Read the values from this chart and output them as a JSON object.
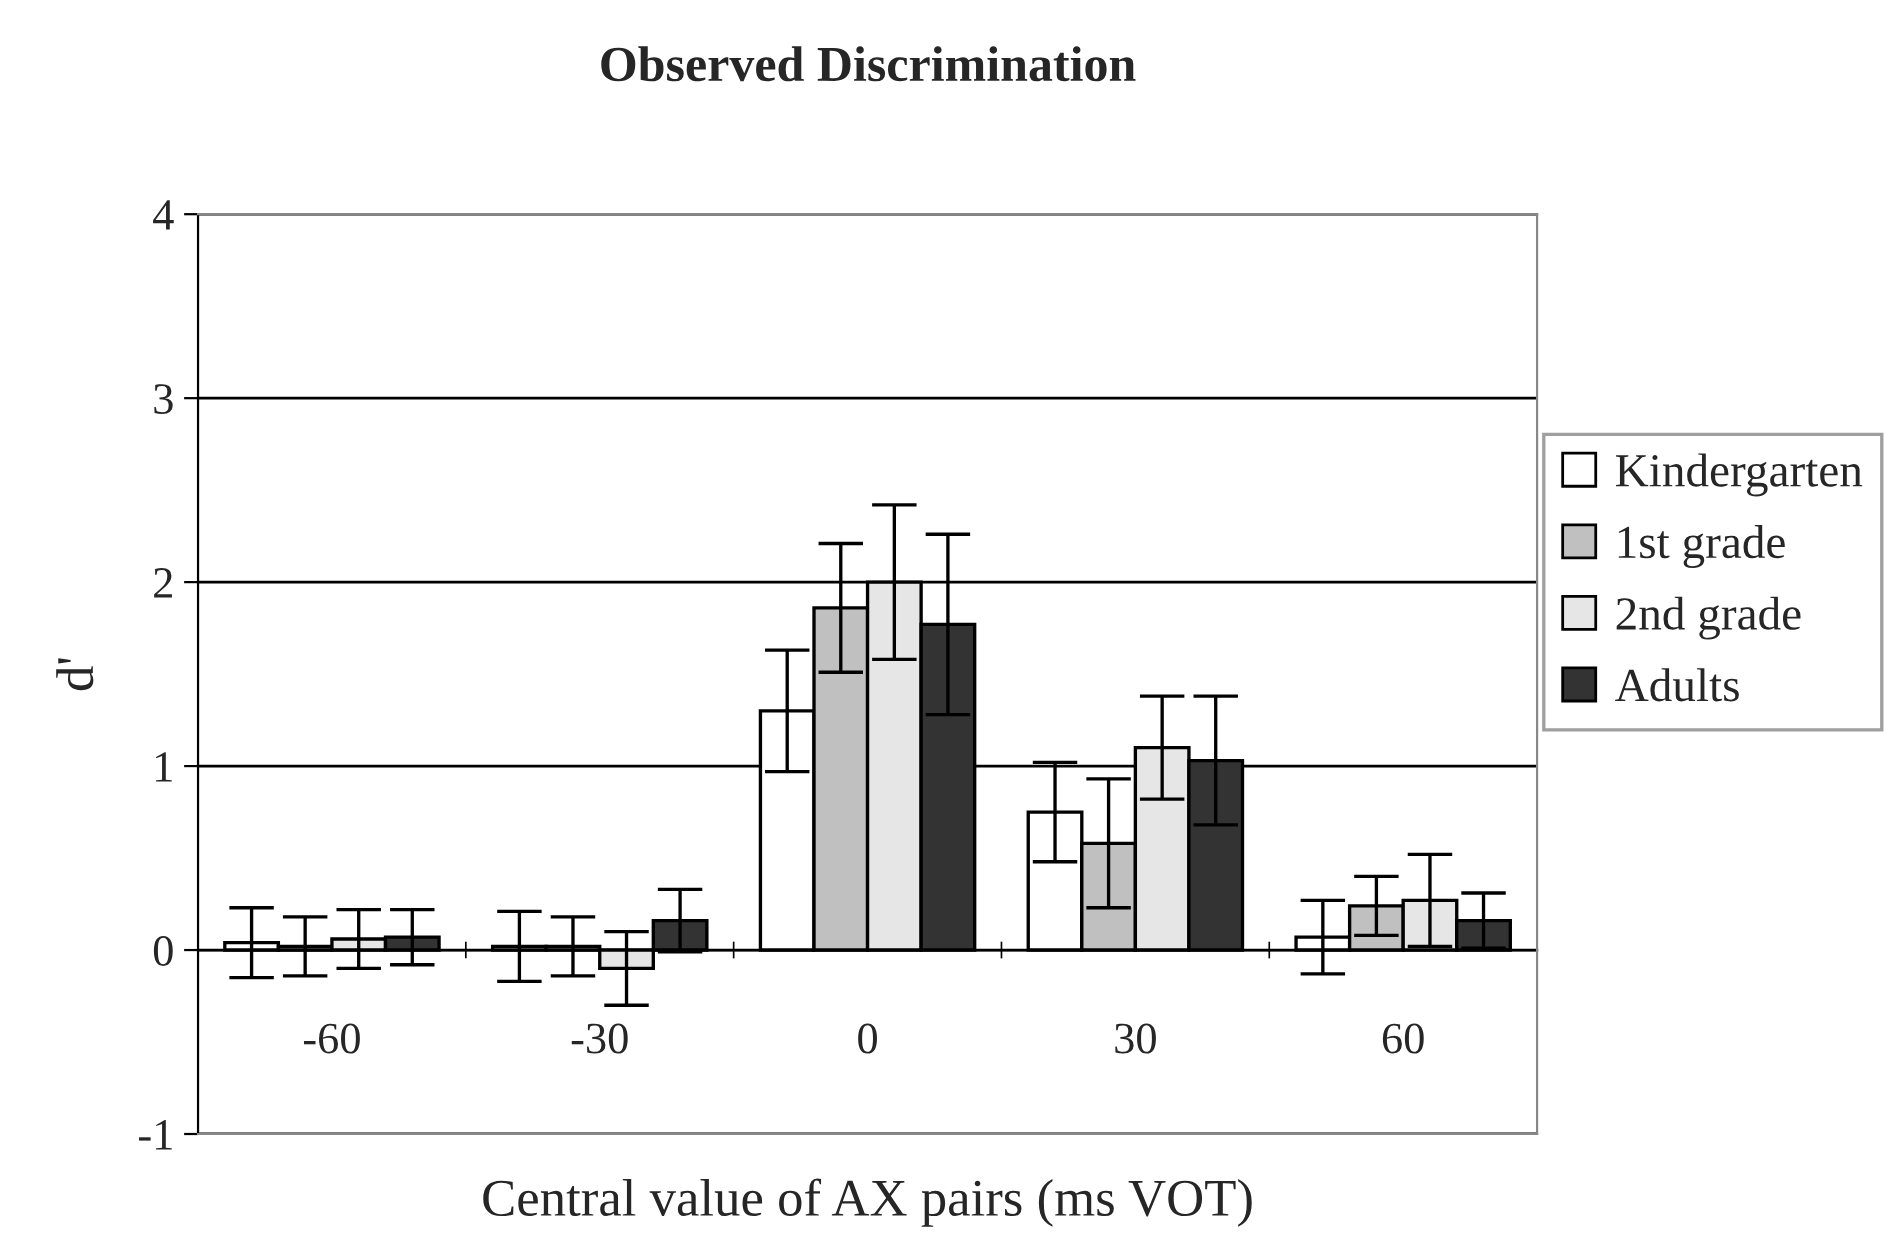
{
  "chart_data": {
    "type": "bar",
    "title": "Observed Discrimination",
    "xlabel": "Central value of AX pairs (ms VOT)",
    "ylabel": "d'",
    "categories": [
      "-60",
      "-30",
      "0",
      "30",
      "60"
    ],
    "series": [
      {
        "name": "Kindergarten",
        "color": "#ffffff",
        "values": [
          0.04,
          0.02,
          1.3,
          0.75,
          0.07
        ],
        "errors": [
          0.19,
          0.19,
          0.33,
          0.27,
          0.2
        ]
      },
      {
        "name": "1st grade",
        "color": "#c0c0c0",
        "values": [
          0.02,
          0.02,
          1.86,
          0.58,
          0.24
        ],
        "errors": [
          0.16,
          0.16,
          0.35,
          0.35,
          0.16
        ]
      },
      {
        "name": "2nd grade",
        "color": "#e6e6e6",
        "values": [
          0.06,
          -0.1,
          2.0,
          1.1,
          0.27
        ],
        "errors": [
          0.16,
          0.2,
          0.42,
          0.28,
          0.25
        ]
      },
      {
        "name": "Adults",
        "color": "#333333",
        "values": [
          0.07,
          0.16,
          1.77,
          1.03,
          0.16
        ],
        "errors": [
          0.15,
          0.17,
          0.49,
          0.35,
          0.15
        ]
      }
    ],
    "ylim": [
      -1,
      4
    ],
    "yticks": [
      -1,
      0,
      1,
      2,
      3,
      4
    ],
    "grid": "y",
    "legend": "right"
  }
}
